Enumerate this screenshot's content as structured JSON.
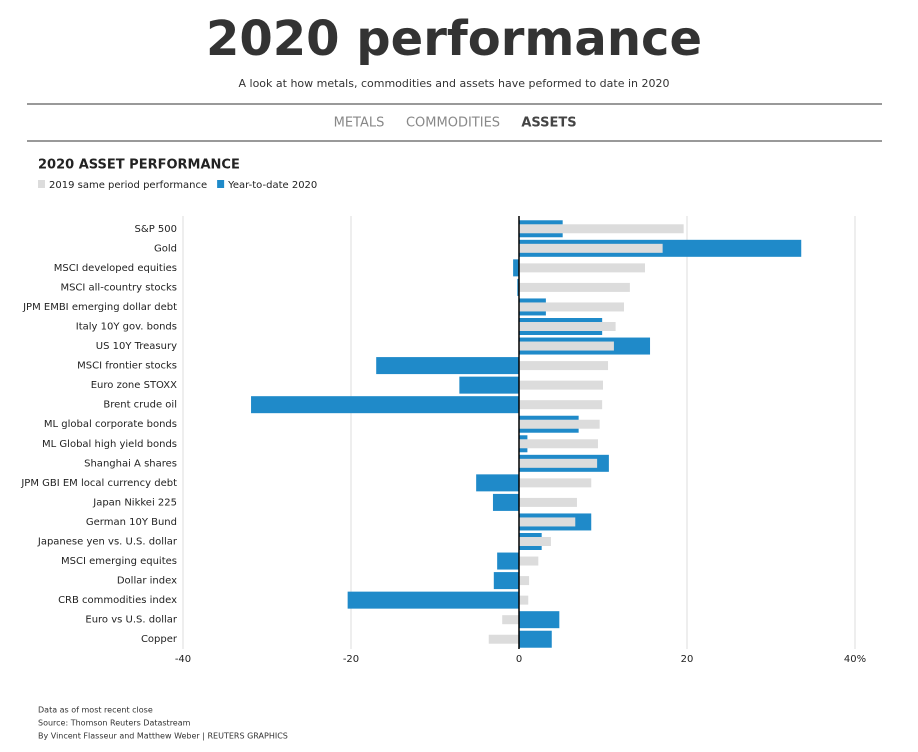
{
  "header": {
    "title": "2020 performance",
    "subtitle": "A look at how metals, commodities and assets have peformed to date in 2020"
  },
  "tabs": [
    "METALS",
    "COMMODITIES",
    "ASSETS"
  ],
  "chart_data": {
    "type": "bar",
    "orientation": "horizontal",
    "title": "2020 ASSET PERFORMANCE",
    "categories": [
      "S&P 500",
      "Gold",
      "MSCI developed equities",
      "MSCI all-country stocks",
      "JPM EMBI emerging dollar debt",
      "Italy 10Y gov. bonds",
      "US 10Y Treasury",
      "MSCI frontier stocks",
      "Euro zone STOXX",
      "Brent crude oil",
      "ML global corporate bonds",
      "ML Global high yield bonds",
      "Shanghai A shares",
      "JPM GBI EM local currency debt",
      "Japan Nikkei 225",
      "German 10Y Bund",
      "Japanese yen vs. U.S. dollar",
      "MSCI emerging equites",
      "Dollar index",
      "CRB commodities index",
      "Euro vs U.S. dollar",
      "Copper"
    ],
    "series": [
      {
        "name": "2019 same period performance",
        "color": "#dcdcdc",
        "values": [
          19.6,
          17.1,
          15.0,
          13.2,
          12.5,
          11.5,
          11.3,
          10.6,
          10.0,
          9.9,
          9.6,
          9.4,
          9.3,
          8.6,
          6.9,
          6.7,
          3.8,
          2.3,
          1.2,
          1.1,
          -2.0,
          -3.6
        ]
      },
      {
        "name": "Year-to-date 2020",
        "color": "#1f8ac9",
        "values": [
          5.2,
          33.6,
          -0.7,
          -0.2,
          3.2,
          9.9,
          15.6,
          -17.0,
          -7.1,
          -31.9,
          7.1,
          1.0,
          10.7,
          -5.1,
          -3.1,
          8.6,
          2.7,
          -2.6,
          -3.0,
          -20.4,
          4.8,
          3.9
        ]
      }
    ],
    "xlim": [
      -40,
      40
    ],
    "xticks": [
      -40,
      -20,
      0,
      20,
      {
        "value": 40,
        "label": "40%"
      }
    ],
    "grid": true
  },
  "footer": [
    "Data as of most recent close",
    "Source: Thomson Reuters Datastream",
    "By Vincent Flasseur and Matthew Weber | REUTERS GRAPHICS"
  ]
}
